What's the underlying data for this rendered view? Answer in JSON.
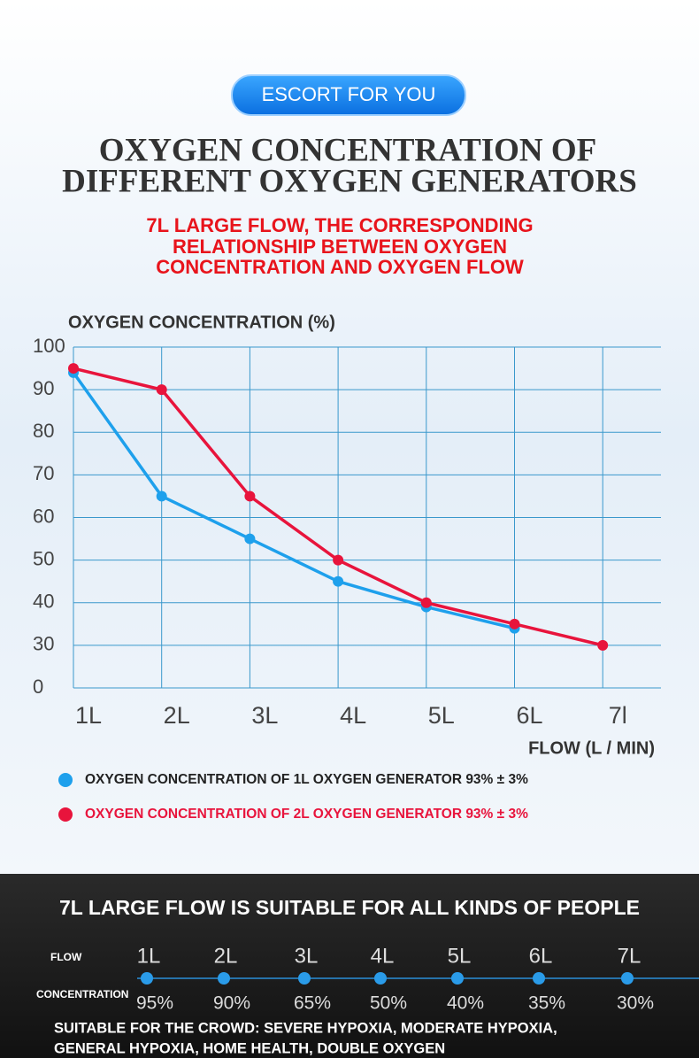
{
  "badge": "ESCORT FOR YOU",
  "title_lines": [
    "OXYGEN CONCENTRATION OF",
    "DIFFERENT OXYGEN GENERATORS"
  ],
  "subtitle_lines": [
    "7L LARGE FLOW, THE CORRESPONDING",
    "RELATIONSHIP BETWEEN OXYGEN",
    "CONCENTRATION AND OXYGEN FLOW"
  ],
  "chart_data": {
    "type": "line",
    "y_label": "OXYGEN CONCENTRATION (%)",
    "x_label": "FLOW (L / MIN)",
    "categories": [
      "1L",
      "2L",
      "3L",
      "4L",
      "5L",
      "6L",
      "7l"
    ],
    "series": [
      {
        "name": "OXYGEN CONCENTRATION OF 1L OXYGEN GENERATOR 93% ± 3%",
        "color": "#1ea0ec",
        "values": [
          94,
          65,
          55,
          45,
          39,
          34,
          null
        ]
      },
      {
        "name": "OXYGEN CONCENTRATION OF 2L OXYGEN GENERATOR 93% ± 3%",
        "color": "#e8143c",
        "values": [
          95,
          90,
          65,
          50,
          40,
          35,
          30
        ]
      }
    ],
    "ylim": [
      0,
      100
    ],
    "yticks": [
      0,
      30,
      40,
      50,
      60,
      70,
      80,
      90,
      100
    ],
    "y_axis_break": true,
    "grid": true
  },
  "bottom": {
    "title": "7L LARGE FLOW IS SUITABLE FOR ALL KINDS OF PEOPLE",
    "flow_label": "FLOW",
    "flows": [
      "1L",
      "2L",
      "3L",
      "4L",
      "5L",
      "6L",
      "7L"
    ],
    "concentration_label": "CONCENTRATION",
    "concentrations": [
      "95%",
      "90%",
      "65%",
      "50%",
      "40%",
      "35%",
      "30%"
    ],
    "suitable_lines": [
      "SUITABLE FOR THE CROWD: SEVERE HYPOXIA, MODERATE HYPOXIA,",
      "GENERAL HYPOXIA, HOME HEALTH, DOUBLE OXYGEN"
    ]
  }
}
